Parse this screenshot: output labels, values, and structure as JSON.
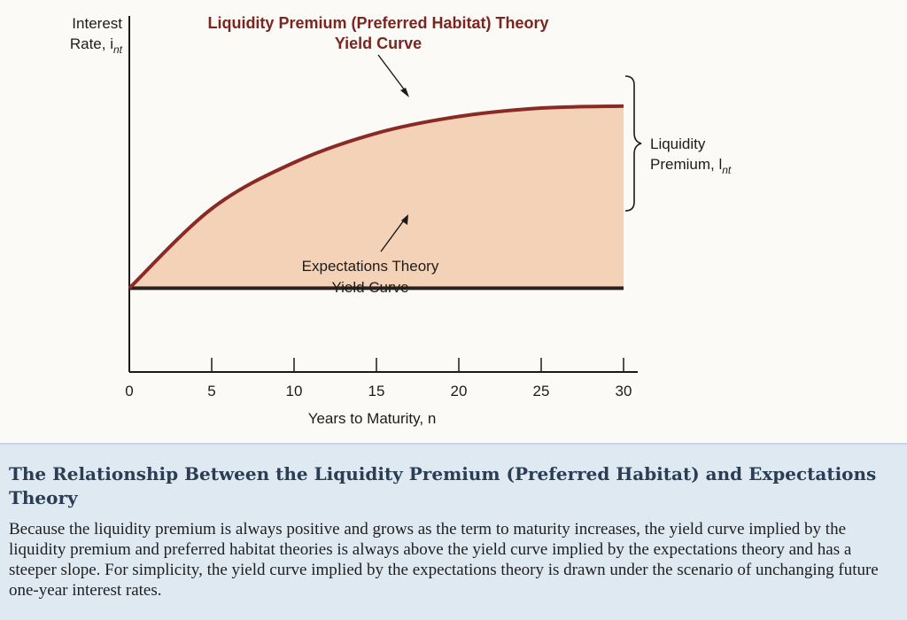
{
  "chart_data": {
    "type": "line",
    "title": "",
    "ylabel_line1": "Interest",
    "ylabel_line2": "Rate, i",
    "ylabel_sub": "nt",
    "xlabel": "Years to Maturity, n",
    "x_ticks": [
      0,
      5,
      10,
      15,
      20,
      25,
      30
    ],
    "xlim": [
      0,
      30
    ],
    "ylim_note": "no y tick labels",
    "series": [
      {
        "name_line1": "Liquidity Premium (Preferred Habitat) Theory",
        "name_line2": "Yield Curve",
        "color": "#8a2a24",
        "x": [
          0,
          5,
          10,
          15,
          20,
          25,
          30
        ],
        "y": [
          2.0,
          3.9,
          5.0,
          5.7,
          6.1,
          6.3,
          6.35
        ]
      },
      {
        "name_line1": "Expectations Theory",
        "name_line2": "Yield Curve",
        "color": "#2a2020",
        "x": [
          0,
          5,
          10,
          15,
          20,
          25,
          30
        ],
        "y": [
          2.0,
          2.0,
          2.0,
          2.0,
          2.0,
          2.0,
          2.0
        ]
      }
    ],
    "fill_color": "#f4d2b8",
    "bracket_label_line1": "Liquidity",
    "bracket_label_line2": "Premium, l",
    "bracket_label_sub": "nt",
    "grid": false,
    "legend": "none"
  },
  "caption": {
    "title": "The Relationship Between the Liquidity Premium (Preferred Habitat) and Expectations Theory",
    "body": "Because the liquidity premium is always positive and grows as the term to maturity increases, the yield curve implied by the liquidity premium and preferred habitat theories is always above the yield curve implied by the expectations theory and has a steeper slope. For simplicity, the yield curve implied by the expectations theory is drawn under the scenario of unchanging future one-year interest rates."
  }
}
